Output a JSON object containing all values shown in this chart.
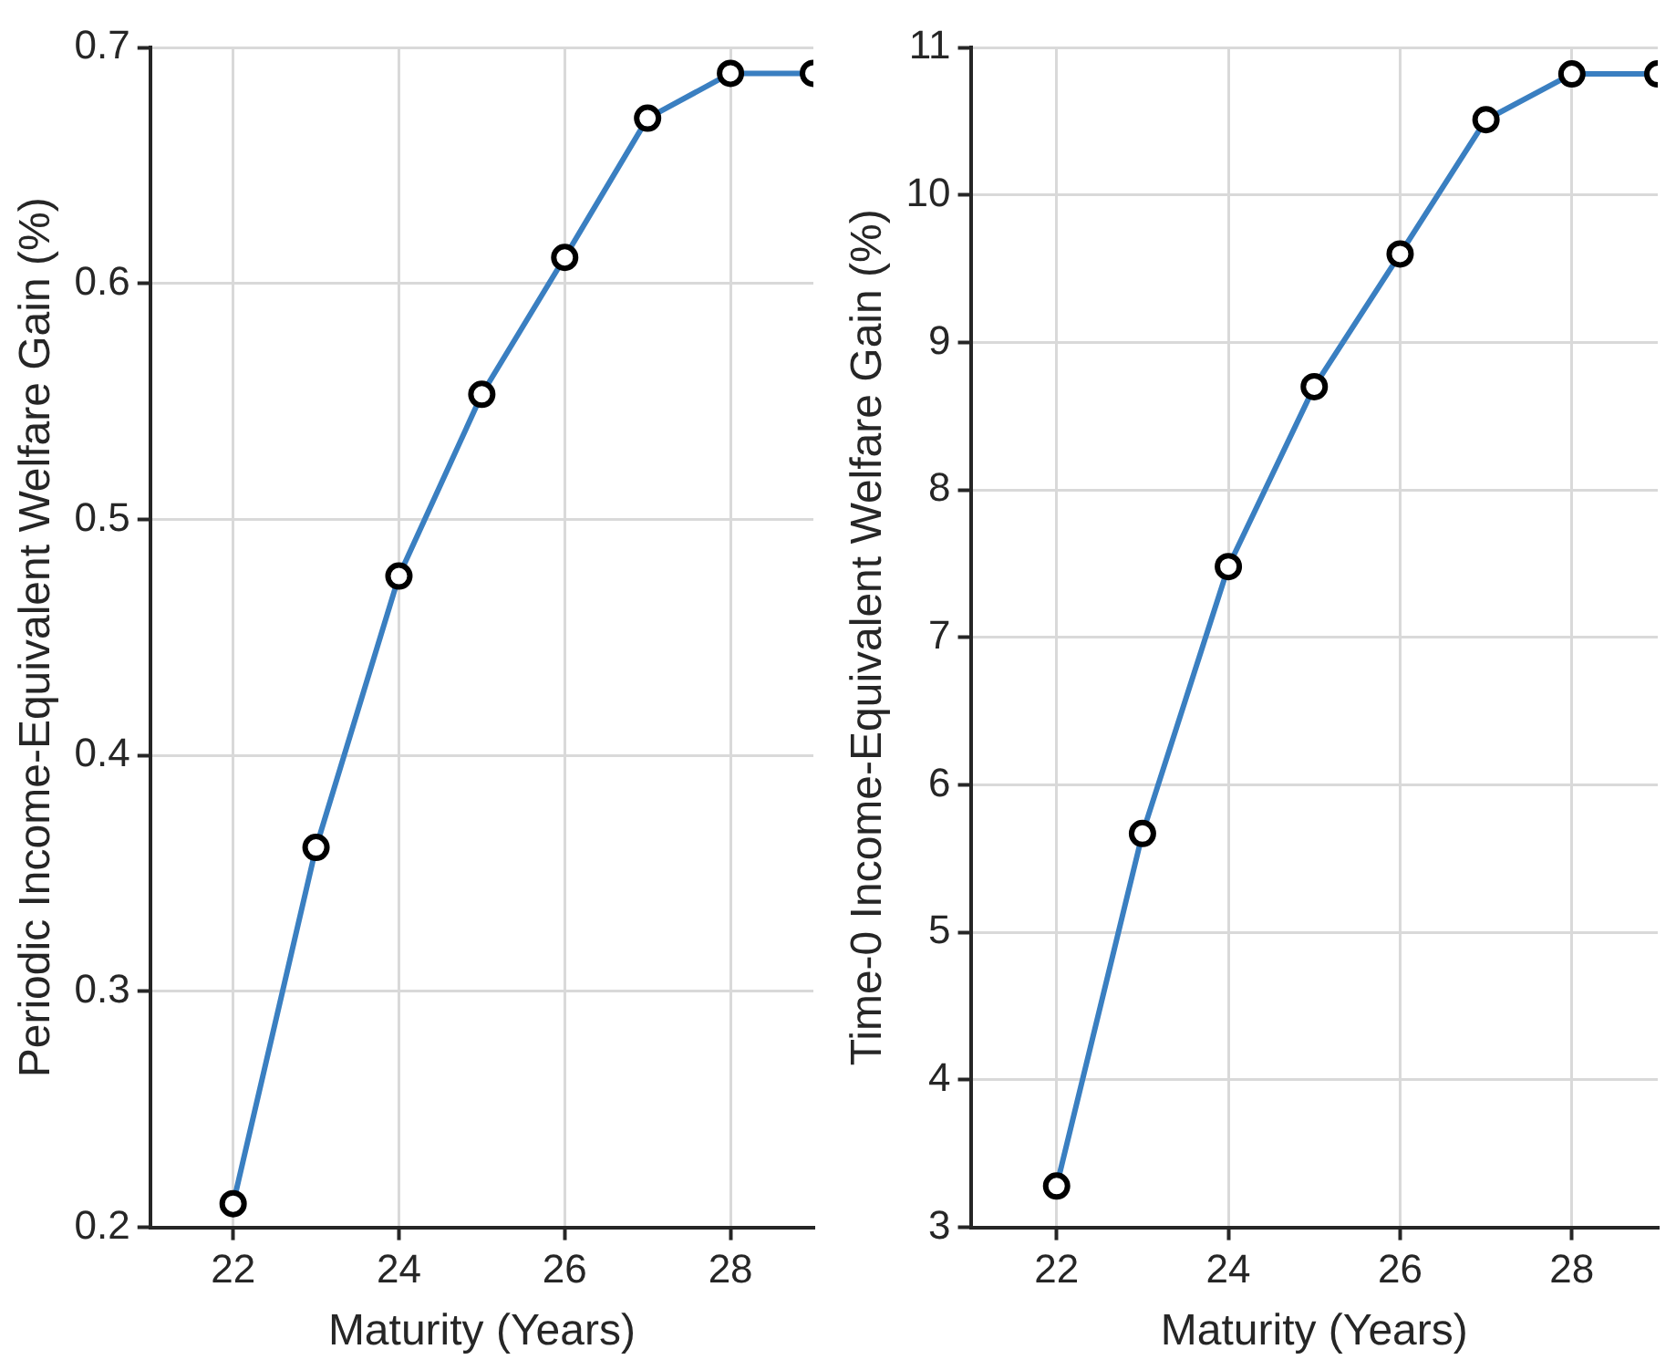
{
  "chart_data": [
    {
      "type": "line",
      "xlabel": "Maturity (Years)",
      "ylabel": "Periodic Income-Equivalent Welfare Gain (%)",
      "x": [
        22,
        23,
        24,
        25,
        26,
        27,
        28,
        29
      ],
      "xlim": [
        21,
        29
      ],
      "xticks": [
        22,
        24,
        26,
        28
      ],
      "ylim": [
        0.2,
        0.7
      ],
      "yticks": [
        0.2,
        0.3,
        0.4,
        0.5,
        0.6,
        0.7
      ],
      "grid": true,
      "legend": false,
      "marker": "circle",
      "line_style": "solid",
      "series": [
        {
          "color": "#3a7fc1",
          "values": [
            0.21,
            0.361,
            0.476,
            0.553,
            0.611,
            0.67,
            0.689,
            0.689
          ]
        }
      ]
    },
    {
      "type": "line",
      "xlabel": "Maturity (Years)",
      "ylabel": "Time-0 Income-Equivalent Welfare Gain (%)",
      "x": [
        22,
        23,
        24,
        25,
        26,
        27,
        28,
        29
      ],
      "xlim": [
        21,
        29
      ],
      "xticks": [
        22,
        24,
        26,
        28
      ],
      "ylim": [
        3,
        11
      ],
      "yticks": [
        3,
        4,
        5,
        6,
        7,
        8,
        9,
        10,
        11
      ],
      "grid": true,
      "legend": false,
      "marker": "circle",
      "line_style": "solid",
      "series": [
        {
          "color": "#3a7fc1",
          "values": [
            3.28,
            5.67,
            7.48,
            8.7,
            9.6,
            10.51,
            10.82,
            10.82
          ]
        }
      ]
    }
  ]
}
